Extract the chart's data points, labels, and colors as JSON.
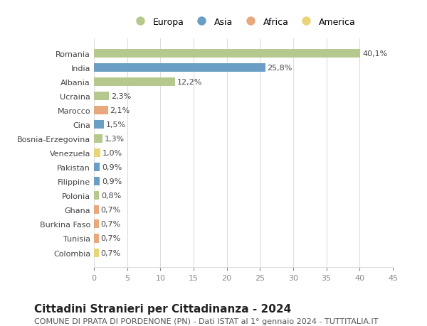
{
  "categories": [
    "Romania",
    "India",
    "Albania",
    "Ucraina",
    "Marocco",
    "Cina",
    "Bosnia-Erzegovina",
    "Venezuela",
    "Pakistan",
    "Filippine",
    "Polonia",
    "Ghana",
    "Burkina Faso",
    "Tunisia",
    "Colombia"
  ],
  "values": [
    40.1,
    25.8,
    12.2,
    2.3,
    2.1,
    1.5,
    1.3,
    1.0,
    0.9,
    0.9,
    0.8,
    0.7,
    0.7,
    0.7,
    0.7
  ],
  "labels": [
    "40,1%",
    "25,8%",
    "12,2%",
    "2,3%",
    "2,1%",
    "1,5%",
    "1,3%",
    "1,0%",
    "0,9%",
    "0,9%",
    "0,8%",
    "0,7%",
    "0,7%",
    "0,7%",
    "0,7%"
  ],
  "colors": [
    "#b5c98e",
    "#6a9ec5",
    "#b5c98e",
    "#b5c98e",
    "#e8a87c",
    "#6a9ec5",
    "#b5c98e",
    "#e8d57a",
    "#6a9ec5",
    "#6a9ec5",
    "#b5c98e",
    "#e8a87c",
    "#e8a87c",
    "#e8a87c",
    "#e8d57a"
  ],
  "legend_labels": [
    "Europa",
    "Asia",
    "Africa",
    "America"
  ],
  "legend_colors": [
    "#b5c98e",
    "#6a9ec5",
    "#e8a87c",
    "#e8d57a"
  ],
  "title": "Cittadini Stranieri per Cittadinanza - 2024",
  "subtitle": "COMUNE DI PRATA DI PORDENONE (PN) - Dati ISTAT al 1° gennaio 2024 - TUTTITALIA.IT",
  "xlim": [
    0,
    45
  ],
  "xticks": [
    0,
    5,
    10,
    15,
    20,
    25,
    30,
    35,
    40,
    45
  ],
  "bg_color": "#ffffff",
  "grid_color": "#dddddd",
  "bar_height": 0.6,
  "title_fontsize": 11,
  "subtitle_fontsize": 8,
  "tick_fontsize": 8,
  "label_fontsize": 8,
  "legend_fontsize": 9
}
